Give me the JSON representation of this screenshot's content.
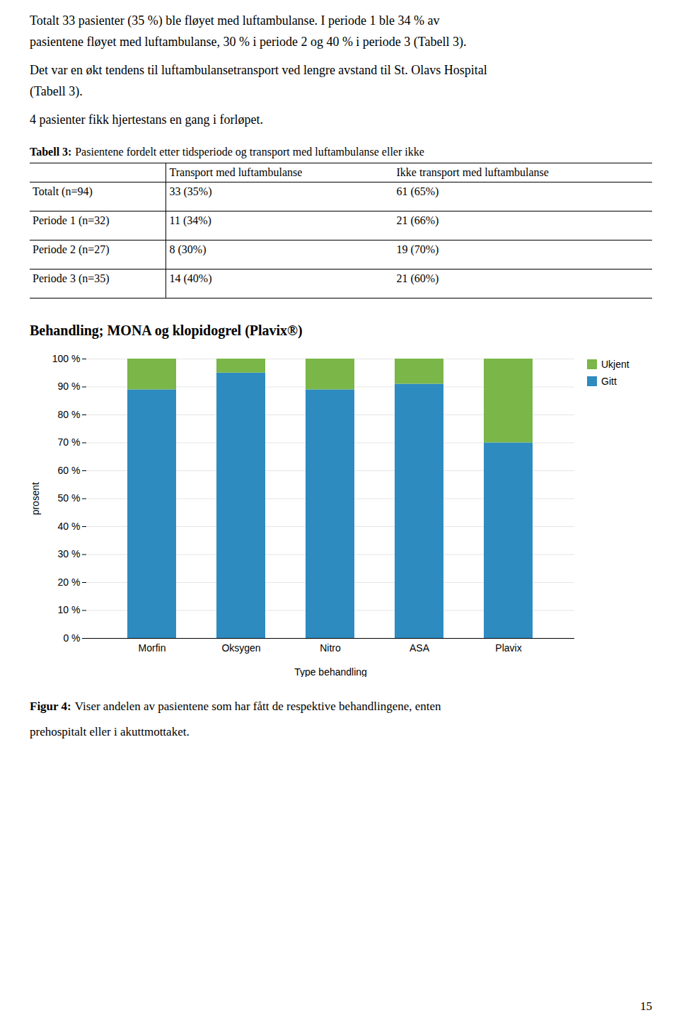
{
  "page": {
    "text_lines": [
      "Totalt 33 pasienter (35 %) ble fløyet med luftambulanse. I periode 1 ble 34 % av",
      "pasientene fløyet med luftambulanse, 30 % i periode 2 og 40 % i periode 3 (Tabell 3).",
      "Det var en økt tendens til luftambulansetransport ved lengre avstand til St. Olavs Hospital",
      "(Tabell 3).",
      "4 pasienter fikk hjertestans en gang i forløpet."
    ],
    "table": {
      "title": "Tabell 3:",
      "subtitle": "Pasientene fordelt etter tidsperiode og transport med luftambulanse eller ikke",
      "columns": [
        "Transport med luftambulanse",
        "Ikke transport med luftambulanse"
      ],
      "rows": [
        [
          "Totalt (n=94)",
          "33 (35%)",
          "61 (65%)"
        ],
        [
          "Periode 1 (n=32)",
          "11 (34%)",
          "21 (66%)"
        ],
        [
          "Periode 2 (n=27)",
          "8 (30%)",
          "19 (70%)"
        ],
        [
          "Periode 3 (n=35)",
          "14 (40%)",
          "21 (60%)"
        ]
      ]
    },
    "caption_label": "Figur 4:",
    "caption_lines": [
      "Viser andelen av pasientene som har fått de respektive behandlingene, enten",
      "prehospitalt eller i akuttmottaket."
    ],
    "page_number": "15"
  },
  "chart_data": {
    "type": "bar",
    "title": "Behandling; MONA og klopidogrel (Plavix®)",
    "x_label": "Type behandling",
    "y_label": "prosent",
    "categories": [
      "Morfin",
      "Oksygen",
      "Nitro",
      "ASA",
      "Plavix"
    ],
    "series": [
      {
        "name": "Gitt",
        "color": "#2E8BC0",
        "values": [
          89,
          95,
          89,
          91,
          70
        ]
      },
      {
        "name": "Ukjent",
        "color": "#7AB648",
        "values": [
          11,
          5,
          11,
          9,
          30
        ]
      }
    ],
    "stacked": true,
    "ylim": [
      0,
      100
    ],
    "yticks": [
      {
        "value": 0,
        "label": "0 %"
      },
      {
        "value": 10,
        "label": "10 %"
      },
      {
        "value": 20,
        "label": "20 %"
      },
      {
        "value": 30,
        "label": "30 %"
      },
      {
        "value": 40,
        "label": "40 %"
      },
      {
        "value": 50,
        "label": "50 %"
      },
      {
        "value": 60,
        "label": "60 %"
      },
      {
        "value": 70,
        "label": "70 %"
      },
      {
        "value": 80,
        "label": "80 %"
      },
      {
        "value": 90,
        "label": "90 %"
      },
      {
        "value": 100,
        "label": "100 %"
      }
    ],
    "grid": true,
    "legend": "right"
  }
}
